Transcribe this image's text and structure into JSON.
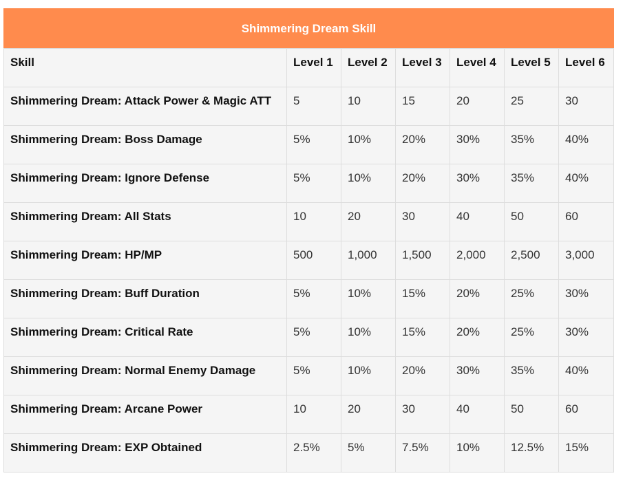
{
  "table": {
    "title": "Shimmering Dream Skill",
    "headers": [
      "Skill",
      "Level 1",
      "Level 2",
      "Level 3",
      "Level 4",
      "Level 5",
      "Level 6"
    ],
    "rows": [
      {
        "skill": "Shimmering Dream: Attack Power & Magic ATT",
        "values": [
          "5",
          "10",
          "15",
          "20",
          "25",
          "30"
        ]
      },
      {
        "skill": "Shimmering Dream: Boss Damage",
        "values": [
          "5%",
          "10%",
          "20%",
          "30%",
          "35%",
          "40%"
        ]
      },
      {
        "skill": "Shimmering Dream: Ignore Defense",
        "values": [
          "5%",
          "10%",
          "20%",
          "30%",
          "35%",
          "40%"
        ]
      },
      {
        "skill": "Shimmering Dream: All Stats",
        "values": [
          "10",
          "20",
          "30",
          "40",
          "50",
          "60"
        ]
      },
      {
        "skill": "Shimmering Dream: HP/MP",
        "values": [
          "500",
          "1,000",
          "1,500",
          "2,000",
          "2,500",
          "3,000"
        ]
      },
      {
        "skill": "Shimmering Dream: Buff Duration",
        "values": [
          "5%",
          "10%",
          "15%",
          "20%",
          "25%",
          "30%"
        ]
      },
      {
        "skill": "Shimmering Dream: Critical Rate",
        "values": [
          "5%",
          "10%",
          "15%",
          "20%",
          "25%",
          "30%"
        ]
      },
      {
        "skill": "Shimmering Dream: Normal Enemy Damage",
        "values": [
          "5%",
          "10%",
          "20%",
          "30%",
          "35%",
          "40%"
        ]
      },
      {
        "skill": "Shimmering Dream: Arcane Power",
        "values": [
          "10",
          "20",
          "30",
          "40",
          "50",
          "60"
        ]
      },
      {
        "skill": "Shimmering Dream: EXP Obtained",
        "values": [
          "2.5%",
          "5%",
          "7.5%",
          "10%",
          "12.5%",
          "15%"
        ]
      }
    ]
  },
  "colors": {
    "header_bg": "#ff8b4d",
    "header_text": "#ffffff",
    "cell_bg": "#f5f5f5",
    "border": "#dddddd"
  }
}
